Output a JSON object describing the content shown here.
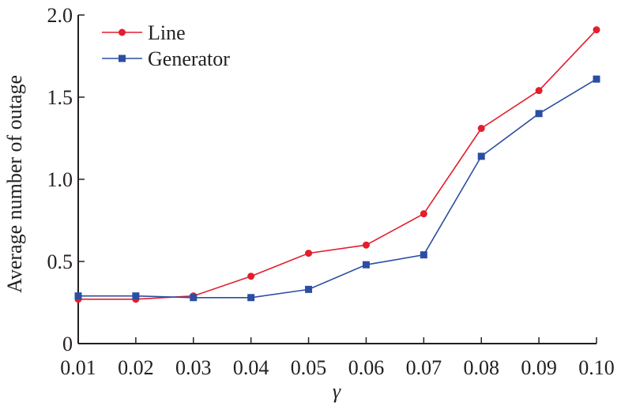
{
  "chart_data": {
    "type": "line",
    "xlabel": "γ",
    "ylabel": "Average number of outage",
    "x": [
      0.01,
      0.02,
      0.03,
      0.04,
      0.05,
      0.06,
      0.07,
      0.08,
      0.09,
      0.1
    ],
    "x_tick_labels": [
      "0.01",
      "0.02",
      "0.03",
      "0.04",
      "0.05",
      "0.06",
      "0.07",
      "0.08",
      "0.09",
      "0.10"
    ],
    "y_ticks": [
      0,
      0.5,
      1.0,
      1.5,
      2.0
    ],
    "y_tick_labels": [
      "0",
      "0.5",
      "1.0",
      "1.5",
      "2.0"
    ],
    "ylim": [
      0,
      2.0
    ],
    "grid": false,
    "legend_position": "top-left",
    "series": [
      {
        "name": "Line",
        "color": "#e31e2d",
        "marker": "circle",
        "values": [
          0.27,
          0.27,
          0.29,
          0.41,
          0.55,
          0.6,
          0.79,
          1.31,
          1.54,
          1.91
        ]
      },
      {
        "name": "Generator",
        "color": "#2b4ea2",
        "marker": "square",
        "values": [
          0.29,
          0.29,
          0.28,
          0.28,
          0.33,
          0.48,
          0.54,
          1.14,
          1.4,
          1.61
        ]
      }
    ]
  }
}
